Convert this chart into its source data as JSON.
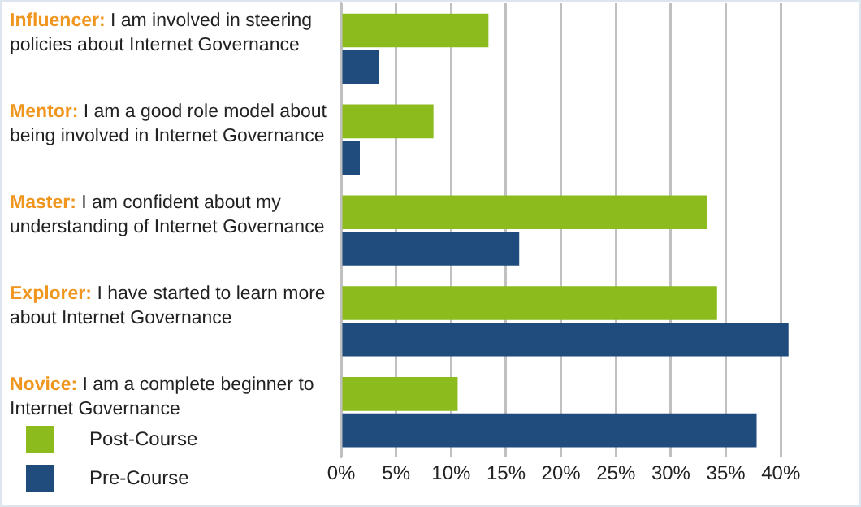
{
  "chart_data": {
    "type": "bar",
    "orientation": "horizontal",
    "categories": [
      "Influencer: I am involved in steering policies about Internet Governance",
      "Mentor: I am a good role model about being involved in Internet Governance",
      "Master: I am confident about my understanding of Internet Governance",
      "Explorer: I have started to learn more about Internet Governance",
      "Novice: I am a complete beginner to Internet Governance"
    ],
    "series": [
      {
        "name": "Post-Course",
        "color": "#8cbb1e",
        "values": [
          13.4,
          8.4,
          33.3,
          34.2,
          10.6
        ]
      },
      {
        "name": "Pre-Course",
        "color": "#1f4b7d",
        "values": [
          3.4,
          1.7,
          16.2,
          40.7,
          37.8
        ]
      }
    ],
    "xlim": [
      0,
      47
    ],
    "xticks": [
      {
        "value": 0,
        "label": "0%"
      },
      {
        "value": 5,
        "label": "5%"
      },
      {
        "value": 10,
        "label": "10%"
      },
      {
        "value": 15,
        "label": "15%"
      },
      {
        "value": 20,
        "label": "20%"
      },
      {
        "value": 25,
        "label": "25%"
      },
      {
        "value": 30,
        "label": "30%"
      },
      {
        "value": 35,
        "label": "35%"
      },
      {
        "value": 40,
        "label": "40%"
      }
    ],
    "grid": "x",
    "legend": "bottom left"
  }
}
